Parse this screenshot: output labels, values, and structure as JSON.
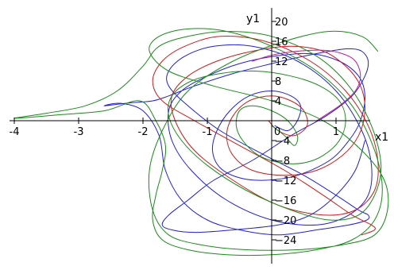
{
  "chart_data": {
    "type": "line",
    "title": "",
    "xlabel": "x1",
    "ylabel": "y1",
    "xlim": [
      -4.2,
      1.85
    ],
    "ylim": [
      -28,
      22
    ],
    "x_ticks": [
      -4,
      -3,
      -2,
      -1,
      0,
      1
    ],
    "x_tick_labels": [
      "-4",
      "-3",
      "-2",
      "-1",
      "0",
      "1"
    ],
    "y_ticks": [
      20,
      16,
      12,
      8,
      4,
      0,
      -4,
      -8,
      -12,
      -16,
      -20,
      -24
    ],
    "y_tick_labels": [
      "20",
      "16",
      "12",
      "8",
      "4",
      "0",
      "−4",
      "−8",
      "−12",
      "−16",
      "−20",
      "−24"
    ],
    "grid": false,
    "legend": "none",
    "series": [
      {
        "color": "#1f1fd6",
        "x": [
          0.05,
          0.25,
          0.4,
          0.45,
          0.3,
          0.0,
          -0.35,
          -0.65,
          -0.85,
          -0.92,
          -0.8,
          -0.5,
          -0.1,
          0.4,
          0.9,
          1.2,
          1.38,
          1.45,
          1.35,
          1.05,
          0.6,
          0.05,
          -0.5,
          -1.0,
          -1.4,
          -1.6,
          -1.55,
          -1.25,
          -0.7,
          0.0,
          0.7,
          1.2,
          1.5,
          1.55,
          1.4,
          1.0,
          0.4,
          -0.3,
          -0.9,
          -1.35,
          -1.6,
          -1.6,
          -1.3,
          -0.8,
          -0.1,
          0.5,
          1.0,
          1.35,
          1.5,
          1.48,
          1.2,
          0.7,
          0.1,
          -0.5,
          -1.0,
          -1.4,
          -1.65,
          -1.75,
          -2.0,
          -2.35,
          -2.6,
          -2.2,
          -1.85,
          -1.6,
          -1.2,
          -0.6,
          0.0,
          0.5,
          0.9,
          1.2,
          1.4,
          1.5,
          1.45,
          1.25,
          0.85,
          0.3,
          -0.3,
          -0.9,
          -1.3,
          -1.6,
          -1.7,
          -1.55,
          -1.2,
          -0.6,
          0.1,
          0.6,
          1.0,
          1.3,
          1.45
        ],
        "y": [
          -1,
          -2,
          0,
          3,
          5,
          6,
          5,
          2,
          -2,
          -6,
          -9.5,
          -11.5,
          -12,
          -11,
          -8,
          -4,
          0,
          5,
          9,
          12,
          13.5,
          13,
          11.5,
          9,
          6,
          2,
          -4,
          -10,
          -16,
          -20,
          -21,
          -19,
          -15,
          -9,
          -2,
          6,
          12,
          15,
          15,
          13,
          10,
          7,
          3,
          -2,
          -7,
          -11,
          -15,
          -18,
          -19,
          -20,
          -21,
          -22,
          -23,
          -22,
          -20,
          -16,
          -10,
          -3,
          2,
          3.5,
          3,
          3.6,
          4,
          5,
          7,
          9.5,
          11.5,
          13,
          14,
          14.5,
          14,
          12,
          9,
          5,
          1,
          -3,
          -8,
          -12,
          -16,
          -19,
          -21,
          -22,
          -22.5,
          -22,
          -21,
          -19,
          -15,
          -10,
          -4
        ]
      },
      {
        "color": "#cc1a1a",
        "x": [
          -0.05,
          0.1,
          0.35,
          0.55,
          0.5,
          0.3,
          0.0,
          -0.35,
          -0.6,
          -0.7,
          -0.6,
          -0.3,
          0.2,
          0.7,
          1.1,
          1.35,
          1.45,
          1.38,
          1.15,
          0.8,
          0.3,
          -0.3,
          -0.85,
          -1.3,
          -1.55,
          -1.5,
          -1.2,
          -0.6,
          0.1,
          0.8,
          1.3,
          1.6,
          1.65,
          1.5,
          1.15,
          0.6,
          -0.1,
          -0.8,
          -1.35,
          -1.7,
          -1.85,
          -1.7,
          -1.2,
          -0.5,
          0.2,
          0.8,
          1.25,
          1.55,
          1.6,
          1.4
        ],
        "y": [
          0,
          -2,
          -3,
          -1,
          2,
          4,
          5,
          4,
          1,
          -3,
          -7,
          -10,
          -11,
          -10,
          -7,
          -3,
          2,
          7,
          11,
          14,
          15,
          14,
          12,
          9,
          5,
          0,
          -6,
          -12,
          -17,
          -19,
          -18,
          -14,
          -8,
          -1,
          6,
          12,
          16,
          17,
          15,
          12,
          8,
          4,
          0,
          -5,
          -10,
          -15,
          -19,
          -21,
          -22,
          -23
        ]
      },
      {
        "color": "#1a8a1a",
        "x": [
          0.0,
          0.2,
          0.35,
          0.4,
          0.25,
          0.0,
          -0.3,
          -0.5,
          -0.55,
          -0.45,
          -0.2,
          0.15,
          0.5,
          0.8,
          1.05,
          1.15,
          1.05,
          0.75,
          0.3,
          -0.25,
          -0.8,
          -1.25,
          -1.55,
          -1.6,
          -1.4,
          -1.0,
          -0.4,
          0.3,
          0.9,
          1.35,
          1.6,
          1.7,
          1.55,
          1.2,
          0.7,
          0.0,
          -0.7,
          -1.3,
          -1.75,
          -2.0,
          -2.4,
          -2.9,
          -3.5,
          -4.0,
          -3.3,
          -2.6,
          -2.05,
          -1.8,
          -1.65,
          -1.7,
          -1.8,
          -1.85,
          -1.7,
          -1.3,
          -0.7,
          0.0,
          0.7,
          1.25,
          1.6,
          1.72,
          1.6,
          1.25,
          0.7,
          0.0,
          -0.7,
          -1.3,
          -1.75,
          -1.9,
          -1.6,
          -0.9,
          0.0,
          0.8,
          1.4,
          1.75,
          1.8,
          1.6,
          1.1,
          0.4,
          -0.4,
          -1.1,
          -1.6,
          -1.85,
          -1.9,
          -1.7,
          -1.3,
          -0.6,
          0.2,
          0.9,
          1.4,
          1.65
        ],
        "y": [
          -1,
          -3,
          -5,
          -3,
          0,
          2,
          3,
          2,
          -1,
          -4,
          -7,
          -8.5,
          -8.5,
          -7,
          -4,
          0,
          4,
          7,
          9,
          10,
          9.5,
          8,
          5,
          1,
          -4,
          -9,
          -14,
          -18,
          -20,
          -19,
          -15,
          -9,
          -1,
          7,
          13,
          17,
          18,
          17,
          15,
          11,
          6,
          3,
          1.5,
          0.5,
          1.2,
          2,
          4,
          0,
          -5,
          -10,
          -15,
          -20,
          -24,
          -26,
          -27,
          -27,
          -26,
          -24,
          -20,
          -14,
          -6,
          3,
          10,
          15,
          18,
          18.5,
          17,
          14,
          10,
          7,
          4,
          0,
          -6,
          -12,
          -18,
          -23,
          -25,
          -26,
          -26,
          -25,
          -23,
          -18,
          -10,
          -2,
          6,
          12,
          16,
          18,
          17,
          14
        ]
      },
      {
        "color": "#c4189a",
        "x": [
          -0.3,
          0.0,
          0.4,
          0.8,
          1.1,
          1.3,
          1.38,
          1.3,
          1.05,
          0.7
        ],
        "y": [
          12,
          13.2,
          14,
          14.2,
          13.5,
          12,
          9,
          6,
          3,
          0
        ]
      }
    ]
  }
}
